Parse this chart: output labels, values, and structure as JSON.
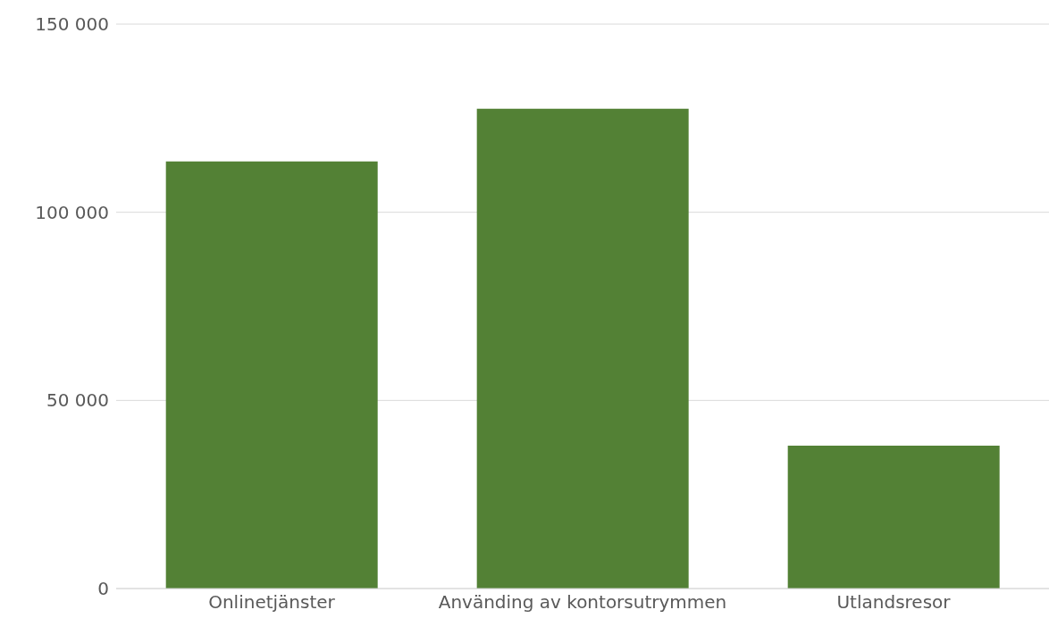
{
  "chart_data": {
    "type": "bar",
    "categories": [
      "Onlinetjänster",
      "Använding av kontorsutrymmen",
      "Utlandsresor"
    ],
    "values": [
      113500,
      127500,
      38000
    ],
    "color": "#538135",
    "ylim": [
      0,
      150000
    ],
    "yticks": [
      {
        "value": 0,
        "label": "0"
      },
      {
        "value": 50000,
        "label": "50 000"
      },
      {
        "value": 100000,
        "label": "100 000"
      },
      {
        "value": 150000,
        "label": "150 000"
      }
    ],
    "grid": "y"
  }
}
